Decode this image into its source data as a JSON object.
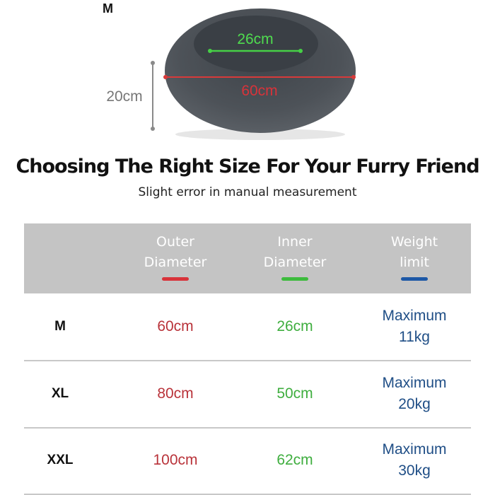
{
  "product_image": {
    "size_label": "M",
    "inner_label": "26cm",
    "outer_label": "60cm",
    "height_label": "20cm",
    "bed_color": "#4b5056"
  },
  "heading": {
    "title": "Choosing The Right Size For Your Furry Friend",
    "subtitle": "Slight error in manual measurement"
  },
  "table": {
    "headers": [
      {
        "line1": "Outer",
        "line2": "Diameter",
        "color": "#d8333a"
      },
      {
        "line1": "Inner",
        "line2": "Diameter",
        "color": "#3dbb3d"
      },
      {
        "line1": "Weight",
        "line2": "limit",
        "color": "#1d58a6"
      }
    ],
    "rows": [
      {
        "size": "M",
        "outer": "60cm",
        "inner": "26cm",
        "weight_line1": "Maximum",
        "weight_line2": "11kg"
      },
      {
        "size": "XL",
        "outer": "80cm",
        "inner": "50cm",
        "weight_line1": "Maximum",
        "weight_line2": "20kg"
      },
      {
        "size": "XXL",
        "outer": "100cm",
        "inner": "62cm",
        "weight_line1": "Maximum",
        "weight_line2": "30kg"
      }
    ]
  }
}
